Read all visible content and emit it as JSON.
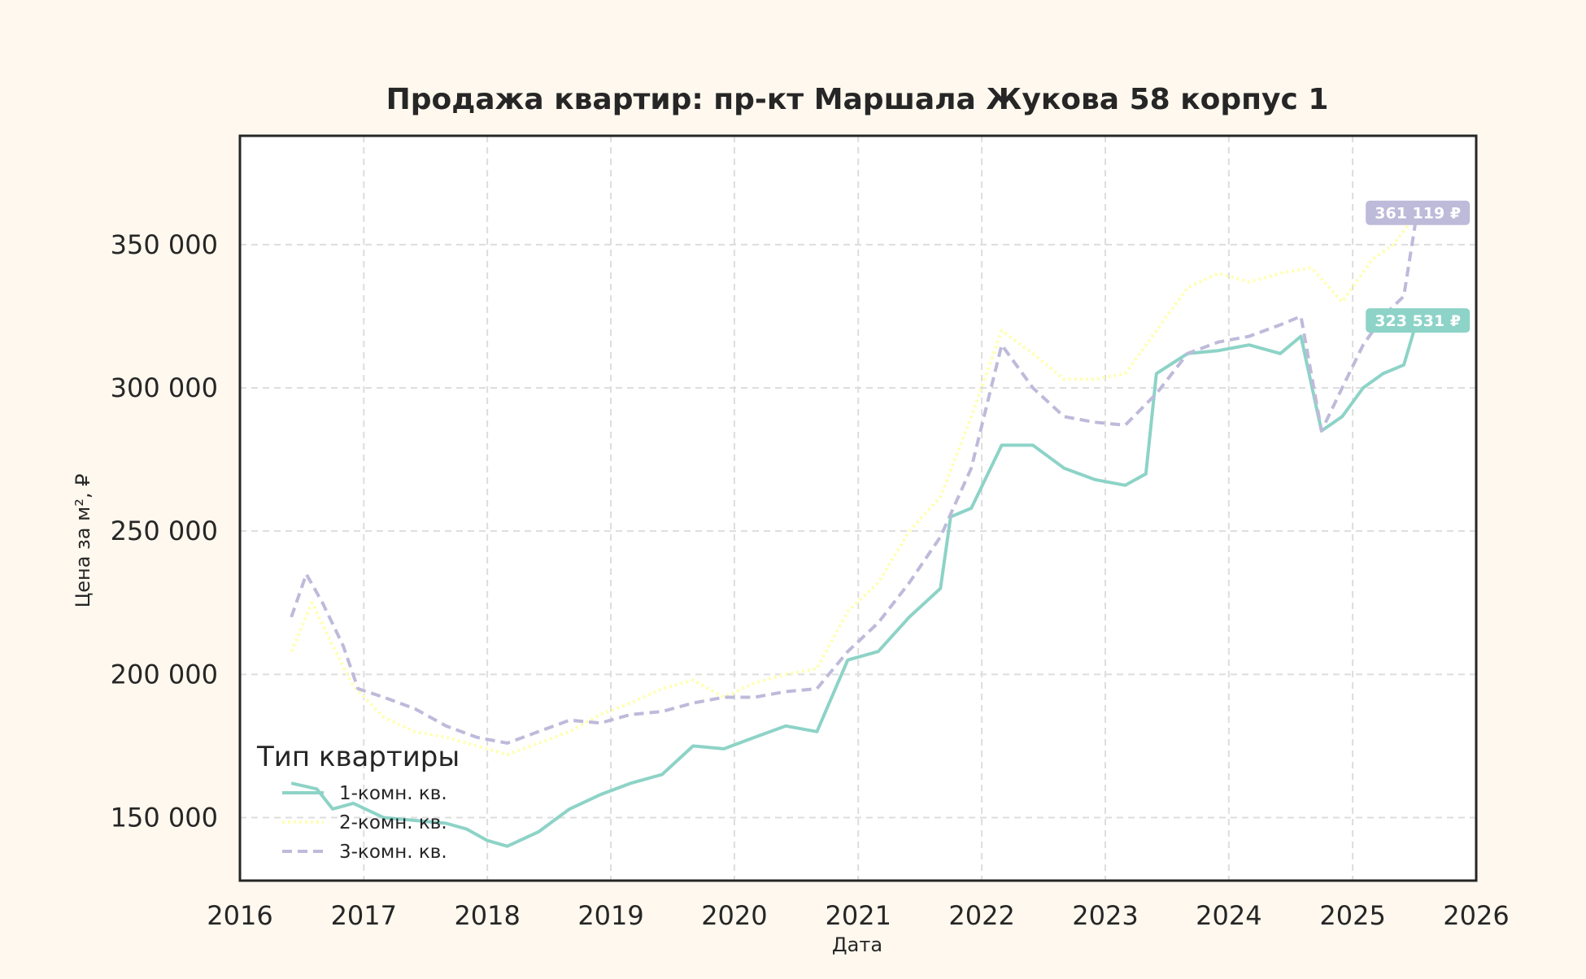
{
  "chart_data": {
    "type": "line",
    "title": "Продажа квартир: пр-кт Маршала Жукова 58 корпус 1",
    "xlabel": "Дата",
    "ylabel": "Цена за м², ₽",
    "xlim": [
      "2016-01-01",
      "2026-01-01"
    ],
    "ylim": [
      128000,
      388000
    ],
    "x_ticks": [
      "2016",
      "2017",
      "2018",
      "2019",
      "2020",
      "2021",
      "2022",
      "2023",
      "2024",
      "2025",
      "2026"
    ],
    "y_ticks": [
      150000,
      200000,
      250000,
      300000,
      350000
    ],
    "y_tick_labels": [
      "150 000",
      "200 000",
      "250 000",
      "300 000",
      "350 000"
    ],
    "grid": true,
    "legend": {
      "title": "Тип квартиры",
      "placement": "lower-left"
    },
    "series": [
      {
        "name": "1-комн. кв.",
        "color": "#8dd3c7",
        "dash": "solid",
        "points": [
          [
            "2016-06-01",
            162000
          ],
          [
            "2016-08-15",
            160000
          ],
          [
            "2016-10-01",
            153000
          ],
          [
            "2016-12-01",
            155000
          ],
          [
            "2017-03-01",
            150000
          ],
          [
            "2017-06-01",
            149000
          ],
          [
            "2017-09-01",
            148000
          ],
          [
            "2017-11-01",
            146000
          ],
          [
            "2018-01-01",
            142000
          ],
          [
            "2018-03-01",
            140000
          ],
          [
            "2018-06-01",
            145000
          ],
          [
            "2018-09-01",
            153000
          ],
          [
            "2018-12-01",
            158000
          ],
          [
            "2019-03-01",
            162000
          ],
          [
            "2019-06-01",
            165000
          ],
          [
            "2019-09-01",
            175000
          ],
          [
            "2019-12-01",
            174000
          ],
          [
            "2020-03-01",
            178000
          ],
          [
            "2020-06-01",
            182000
          ],
          [
            "2020-09-01",
            180000
          ],
          [
            "2020-12-01",
            205000
          ],
          [
            "2021-03-01",
            208000
          ],
          [
            "2021-06-01",
            220000
          ],
          [
            "2021-09-01",
            230000
          ],
          [
            "2021-10-01",
            255000
          ],
          [
            "2021-12-01",
            258000
          ],
          [
            "2022-03-01",
            280000
          ],
          [
            "2022-06-01",
            280000
          ],
          [
            "2022-09-01",
            272000
          ],
          [
            "2022-12-01",
            268000
          ],
          [
            "2023-03-01",
            266000
          ],
          [
            "2023-05-01",
            270000
          ],
          [
            "2023-06-01",
            305000
          ],
          [
            "2023-09-01",
            312000
          ],
          [
            "2023-12-01",
            313000
          ],
          [
            "2024-03-01",
            315000
          ],
          [
            "2024-06-01",
            312000
          ],
          [
            "2024-08-01",
            318000
          ],
          [
            "2024-10-01",
            285000
          ],
          [
            "2024-12-01",
            290000
          ],
          [
            "2025-02-01",
            300000
          ],
          [
            "2025-04-01",
            305000
          ],
          [
            "2025-06-01",
            308000
          ],
          [
            "2025-07-10",
            323531
          ]
        ]
      },
      {
        "name": "2-комн. кв.",
        "color": "#ffffb3",
        "dash": "dotted",
        "points": [
          [
            "2016-06-01",
            208000
          ],
          [
            "2016-08-01",
            225000
          ],
          [
            "2016-10-01",
            210000
          ],
          [
            "2016-12-01",
            196000
          ],
          [
            "2017-03-01",
            185000
          ],
          [
            "2017-06-01",
            180000
          ],
          [
            "2017-09-01",
            178000
          ],
          [
            "2017-12-01",
            175000
          ],
          [
            "2018-03-01",
            172000
          ],
          [
            "2018-06-01",
            176000
          ],
          [
            "2018-09-01",
            180000
          ],
          [
            "2018-12-01",
            186000
          ],
          [
            "2019-03-01",
            190000
          ],
          [
            "2019-06-01",
            195000
          ],
          [
            "2019-09-01",
            198000
          ],
          [
            "2019-12-01",
            192000
          ],
          [
            "2020-03-01",
            197000
          ],
          [
            "2020-06-01",
            200000
          ],
          [
            "2020-09-01",
            202000
          ],
          [
            "2020-12-01",
            222000
          ],
          [
            "2021-03-01",
            232000
          ],
          [
            "2021-06-01",
            250000
          ],
          [
            "2021-09-01",
            262000
          ],
          [
            "2021-12-01",
            290000
          ],
          [
            "2022-03-01",
            320000
          ],
          [
            "2022-06-01",
            312000
          ],
          [
            "2022-09-01",
            303000
          ],
          [
            "2022-12-01",
            303000
          ],
          [
            "2023-03-01",
            305000
          ],
          [
            "2023-06-01",
            320000
          ],
          [
            "2023-09-01",
            335000
          ],
          [
            "2023-12-01",
            340000
          ],
          [
            "2024-03-01",
            337000
          ],
          [
            "2024-06-01",
            340000
          ],
          [
            "2024-09-01",
            342000
          ],
          [
            "2024-12-01",
            330000
          ],
          [
            "2025-03-01",
            345000
          ],
          [
            "2025-05-01",
            350000
          ],
          [
            "2025-07-10",
            361119
          ]
        ]
      },
      {
        "name": "3-комн. кв.",
        "color": "#bebada",
        "dash": "dashed",
        "points": [
          [
            "2016-06-01",
            220000
          ],
          [
            "2016-07-15",
            235000
          ],
          [
            "2016-09-01",
            225000
          ],
          [
            "2016-11-01",
            210000
          ],
          [
            "2016-12-15",
            195000
          ],
          [
            "2017-03-01",
            192000
          ],
          [
            "2017-06-01",
            188000
          ],
          [
            "2017-09-01",
            182000
          ],
          [
            "2017-12-01",
            178000
          ],
          [
            "2018-03-01",
            176000
          ],
          [
            "2018-06-01",
            180000
          ],
          [
            "2018-09-01",
            184000
          ],
          [
            "2018-12-01",
            183000
          ],
          [
            "2019-03-01",
            186000
          ],
          [
            "2019-06-01",
            187000
          ],
          [
            "2019-09-01",
            190000
          ],
          [
            "2019-12-01",
            192000
          ],
          [
            "2020-03-01",
            192000
          ],
          [
            "2020-06-01",
            194000
          ],
          [
            "2020-09-01",
            195000
          ],
          [
            "2020-12-01",
            208000
          ],
          [
            "2021-03-01",
            218000
          ],
          [
            "2021-06-01",
            232000
          ],
          [
            "2021-09-01",
            248000
          ],
          [
            "2021-12-01",
            272000
          ],
          [
            "2022-03-01",
            315000
          ],
          [
            "2022-06-01",
            300000
          ],
          [
            "2022-09-01",
            290000
          ],
          [
            "2022-12-01",
            288000
          ],
          [
            "2023-03-01",
            287000
          ],
          [
            "2023-06-01",
            298000
          ],
          [
            "2023-09-01",
            312000
          ],
          [
            "2023-12-01",
            316000
          ],
          [
            "2024-03-01",
            318000
          ],
          [
            "2024-06-01",
            322000
          ],
          [
            "2024-08-01",
            325000
          ],
          [
            "2024-10-01",
            285000
          ],
          [
            "2024-12-01",
            300000
          ],
          [
            "2025-02-01",
            315000
          ],
          [
            "2025-04-01",
            325000
          ],
          [
            "2025-06-01",
            332000
          ],
          [
            "2025-07-10",
            361119
          ]
        ]
      }
    ],
    "annotations": [
      {
        "text": "361 119 ₽",
        "date": "2025-07-10",
        "value": 361119,
        "color": "#bebada"
      },
      {
        "text": "323 531 ₽",
        "date": "2025-07-10",
        "value": 323531,
        "color": "#8dd3c7"
      }
    ]
  }
}
